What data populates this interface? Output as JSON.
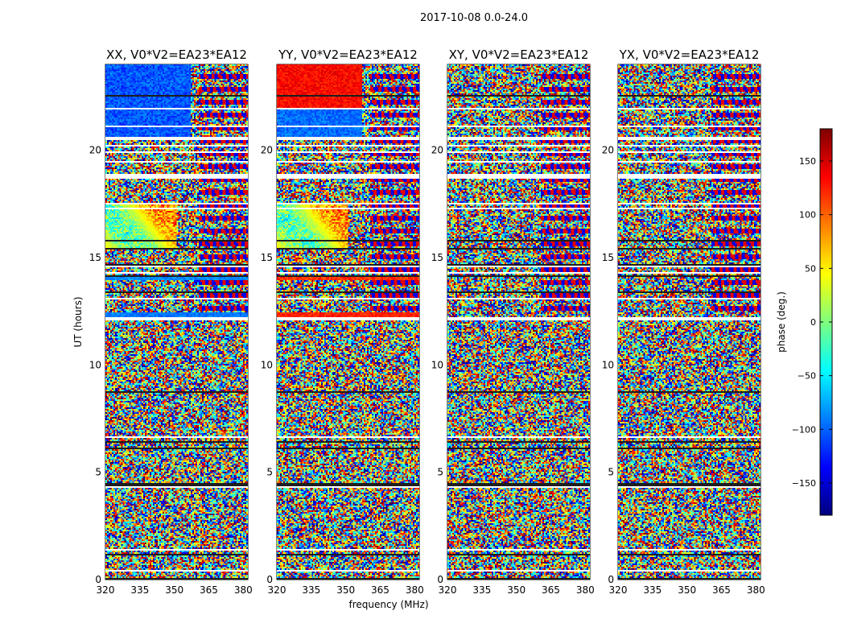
{
  "figure": {
    "suptitle": "2017-10-08 0.0-24.0"
  },
  "chart_data": {
    "type": "heatmap",
    "xlabel": "frequency (MHz)",
    "ylabel": "UT (hours)",
    "xlim": [
      320,
      382
    ],
    "ylim": [
      0,
      24
    ],
    "xticks": [
      320,
      335,
      350,
      365,
      380
    ],
    "yticks": [
      0,
      5,
      10,
      15,
      20
    ],
    "panels": [
      {
        "title": "XX, V0*V2=EA23*EA12",
        "polarization": "XX"
      },
      {
        "title": "YY, V0*V2=EA23*EA12",
        "polarization": "YY"
      },
      {
        "title": "XY, V0*V2=EA23*EA12",
        "polarization": "XY"
      },
      {
        "title": "YX, V0*V2=EA23*EA12",
        "polarization": "YX"
      }
    ],
    "colorbar": {
      "label": "phase (deg.)",
      "range": [
        -180,
        180
      ],
      "ticks": [
        -150,
        -100,
        -50,
        0,
        50,
        100,
        150
      ],
      "tick_labels": [
        "−150",
        "−100",
        "−50",
        "0",
        "50",
        "100",
        "150"
      ],
      "colormap": "jet",
      "colors": [
        "#00007f",
        "#0000ff",
        "#007fff",
        "#00ffff",
        "#7fff7f",
        "#ffff00",
        "#ff7f00",
        "#ff0000",
        "#7f0000"
      ]
    },
    "grid": false
  }
}
